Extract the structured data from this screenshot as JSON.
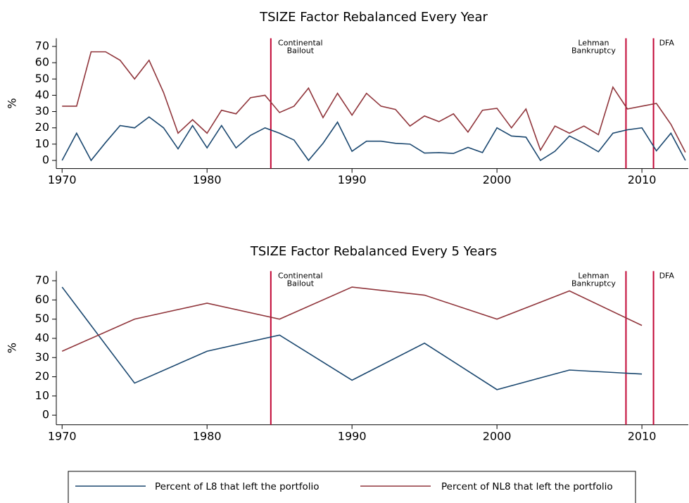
{
  "chart_data": [
    {
      "type": "line",
      "title": "TSIZE Factor Rebalanced Every Year",
      "y_label": "%",
      "x": [
        1970,
        1971,
        1972,
        1973,
        1974,
        1975,
        1976,
        1977,
        1978,
        1979,
        1980,
        1981,
        1982,
        1983,
        1984,
        1985,
        1986,
        1987,
        1988,
        1989,
        1990,
        1991,
        1992,
        1993,
        1994,
        1995,
        1996,
        1997,
        1998,
        1999,
        2000,
        2001,
        2002,
        2003,
        2004,
        2005,
        2006,
        2007,
        2008,
        2009,
        2010,
        2011,
        2012,
        2013
      ],
      "series": [
        {
          "name": "Percent of L8 that left the portfolio",
          "color": "#1a476f",
          "values": [
            0,
            16.7,
            0,
            11,
            21.4,
            20,
            26.7,
            20,
            7.1,
            21.4,
            7.7,
            21.4,
            7.7,
            15.4,
            20,
            16.7,
            12.5,
            0,
            10.5,
            23.5,
            5.6,
            11.8,
            11.8,
            10.5,
            10,
            4.5,
            4.8,
            4.3,
            8,
            4.8,
            20,
            15,
            14.3,
            0,
            5.6,
            15,
            10.5,
            5.3,
            16.7,
            18.8,
            20,
            5.9,
            16.7,
            0
          ]
        },
        {
          "name": "Percent of NL8 that left the portfolio",
          "color": "#90353b",
          "values": [
            33.3,
            33.3,
            66.7,
            66.7,
            61.5,
            50,
            61.5,
            41.7,
            16.7,
            25,
            16.7,
            30.8,
            28.6,
            38.5,
            40,
            29.4,
            33.3,
            44.4,
            26.3,
            41.2,
            27.8,
            41.2,
            33.3,
            31.3,
            21.1,
            27.3,
            23.8,
            28.6,
            17.4,
            30.8,
            32,
            20,
            31.6,
            6.3,
            21.1,
            16.7,
            21.1,
            15.8,
            45,
            31.6,
            33.3,
            35,
            22.2,
            5
          ]
        }
      ],
      "vlines": [
        {
          "x": 1984.4,
          "label": [
            "Continental",
            "Bailout"
          ]
        },
        {
          "x": 2008.9,
          "label": [
            "Lehman",
            "Bankruptcy"
          ]
        },
        {
          "x": 2010.8,
          "label": [
            "DFA"
          ]
        }
      ],
      "vline_color": "#c10534",
      "xlim": [
        1969.6,
        2013.2
      ],
      "xticks": [
        1970,
        1980,
        1990,
        2000,
        2010
      ],
      "ylim": [
        -5,
        75
      ],
      "yticks": [
        0,
        10,
        20,
        30,
        40,
        50,
        60,
        70
      ]
    },
    {
      "type": "line",
      "title": "TSIZE Factor Rebalanced Every 5 Years",
      "y_label": "%",
      "x": [
        1970,
        1975,
        1980,
        1985,
        1990,
        1995,
        2000,
        2005,
        2010
      ],
      "series": [
        {
          "color": "#1a476f",
          "values": [
            66.7,
            16.7,
            33.3,
            41.7,
            18.2,
            37.5,
            13.3,
            23.5,
            21.4
          ]
        },
        {
          "color": "#90353b",
          "values": [
            33.3,
            50,
            58.3,
            50,
            66.7,
            62.5,
            50,
            64.7,
            46.7
          ]
        }
      ],
      "vlines": [
        {
          "x": 1984.4,
          "label": [
            "Continental",
            "Bailout"
          ]
        },
        {
          "x": 2008.9,
          "label": [
            "Lehman",
            "Bankruptcy"
          ]
        },
        {
          "x": 2010.8,
          "label": [
            "DFA"
          ]
        }
      ],
      "vline_color": "#c10534",
      "xlim": [
        1969.6,
        2013.2
      ],
      "xticks": [
        1970,
        1980,
        1990,
        2000,
        2010
      ],
      "ylim": [
        -5,
        75
      ],
      "yticks": [
        0,
        10,
        20,
        30,
        40,
        50,
        60,
        70
      ]
    }
  ]
}
